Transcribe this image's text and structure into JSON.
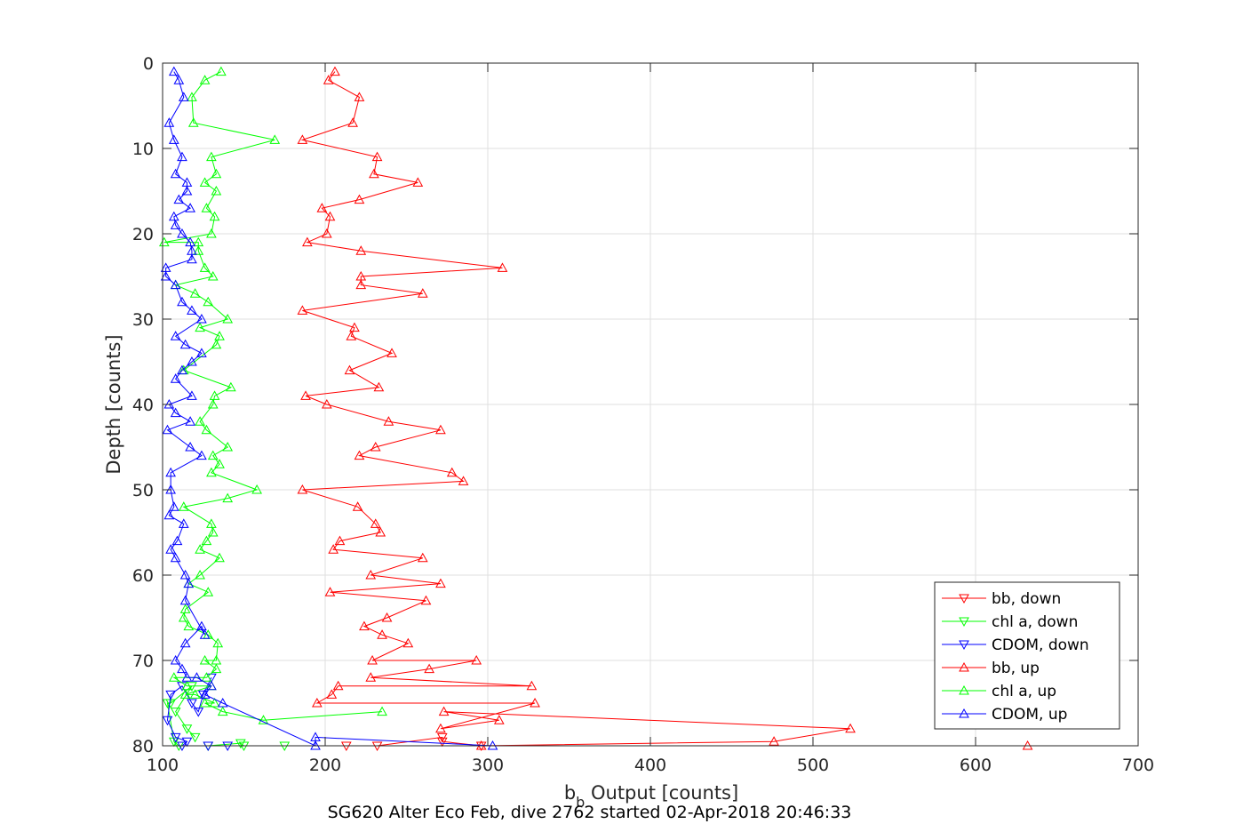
{
  "caption": "SG620 Alter Eco Feb, dive 2762 started 02-Apr-2018 20:46:33",
  "chart_data": {
    "type": "line",
    "xlabel_main": "b",
    "xlabel_sub": "b",
    "xlabel_rest": " Output [counts]",
    "ylabel": "Depth [counts]",
    "xlim": [
      100,
      700
    ],
    "ylim": [
      0,
      80
    ],
    "y_reversed": true,
    "grid": true,
    "legend_position": "lower-right",
    "xticks": [
      "100",
      "200",
      "300",
      "400",
      "500",
      "600",
      "700"
    ],
    "yticks": [
      "0",
      "10",
      "20",
      "30",
      "40",
      "50",
      "60",
      "70",
      "80"
    ],
    "series": [
      {
        "name": "bb, down",
        "color": "#ff0000",
        "marker": "triangle-down",
        "x": [
          213,
          232,
          272,
          272,
          296
        ],
        "y": [
          80,
          80,
          79,
          79.5,
          80
        ]
      },
      {
        "name": "chl a, down",
        "color": "#00ff00",
        "marker": "triangle-down",
        "x": [
          175,
          150,
          148,
          128,
          110,
          107,
          103,
          105,
          118,
          108,
          115,
          120
        ],
        "y": [
          80,
          80,
          79.7,
          80,
          80,
          79.5,
          75,
          75,
          73,
          76,
          78,
          79
        ]
      },
      {
        "name": "CDOM, down",
        "color": "#0000ff",
        "marker": "triangle-down",
        "x": [
          140,
          128,
          112,
          115,
          108,
          103,
          105,
          112,
          118,
          122,
          125,
          130
        ],
        "y": [
          80,
          80,
          80,
          79.5,
          79,
          77,
          74,
          73,
          75,
          76,
          74,
          72
        ]
      },
      {
        "name": "bb, up",
        "color": "#ff0000",
        "marker": "triangle-up",
        "x": [
          632,
          296,
          476,
          523,
          273,
          307,
          271,
          329,
          195,
          204,
          208,
          327,
          228,
          264,
          293,
          229,
          251,
          235,
          224,
          238,
          262,
          203,
          271,
          228,
          260,
          205,
          209,
          234,
          231,
          220,
          186,
          285,
          278,
          221,
          231,
          271,
          239,
          201,
          188,
          233,
          215,
          241,
          216,
          218,
          186,
          260,
          222,
          222,
          309,
          222,
          189,
          201,
          203,
          198,
          221,
          257,
          230,
          232,
          186,
          217,
          221,
          202,
          206
        ],
        "y": [
          80,
          80,
          79.5,
          78,
          76,
          77,
          78,
          75,
          75,
          74,
          73,
          73,
          72,
          71,
          70,
          70,
          68,
          67,
          66,
          65,
          63,
          62,
          61,
          60,
          58,
          57,
          56,
          55,
          54,
          52,
          50,
          49,
          48,
          46,
          45,
          43,
          42,
          40,
          39,
          38,
          36,
          34,
          32,
          31,
          29,
          27,
          26,
          25,
          24,
          22,
          21,
          20,
          18,
          17,
          16,
          14,
          13,
          11,
          9,
          7,
          4,
          2,
          1
        ]
      },
      {
        "name": "chl a, up",
        "color": "#00ff00",
        "marker": "triangle-up",
        "x": [
          235,
          162,
          137,
          126,
          132,
          120,
          114,
          130,
          115,
          107,
          127,
          133,
          126,
          133,
          134,
          128,
          116,
          113,
          114,
          128,
          116,
          123,
          135,
          123,
          127,
          131,
          130,
          113,
          140,
          158,
          130,
          135,
          131,
          140,
          127,
          123,
          131,
          132,
          142,
          113,
          133,
          135,
          123,
          140,
          128,
          120,
          108,
          131,
          126,
          122,
          122,
          101,
          130,
          132,
          127,
          133,
          126,
          133,
          130,
          169,
          119,
          118,
          126,
          136
        ],
        "y": [
          76,
          77,
          76,
          75,
          75,
          74,
          74,
          73,
          73,
          72,
          72,
          71,
          70,
          70,
          68,
          67,
          66,
          65,
          64,
          62,
          61,
          60,
          58,
          57,
          56,
          55,
          54,
          52,
          51,
          50,
          48,
          47,
          46,
          45,
          43,
          42,
          40,
          39,
          38,
          36,
          33,
          32,
          31,
          30,
          28,
          27,
          26,
          25,
          24,
          22,
          21,
          21,
          20,
          18,
          17,
          15,
          14,
          13,
          11,
          9,
          7,
          4,
          2,
          1
        ]
      },
      {
        "name": "CDOM, up",
        "color": "#0000ff",
        "marker": "triangle-up",
        "x": [
          303,
          194,
          194,
          137,
          126,
          130,
          121,
          115,
          112,
          108,
          114,
          124,
          126,
          114,
          116,
          114,
          108,
          105,
          109,
          113,
          104,
          107,
          105,
          105,
          124,
          117,
          103,
          117,
          108,
          104,
          118,
          108,
          112,
          118,
          124,
          114,
          108,
          124,
          118,
          112,
          108,
          102,
          102,
          118,
          118,
          117,
          112,
          108,
          107,
          117,
          110,
          115,
          115,
          108,
          112,
          107,
          104,
          113,
          110,
          107
        ],
        "y": [
          80,
          79,
          80,
          75,
          74,
          73,
          72,
          72,
          71,
          70,
          68,
          66,
          67,
          63,
          61,
          60,
          58,
          57,
          56,
          54,
          53,
          52,
          50,
          48,
          46,
          45,
          43,
          42,
          41,
          40,
          39,
          37,
          36,
          35,
          34,
          33,
          32,
          30,
          29,
          28,
          26,
          25,
          24,
          23,
          22,
          21,
          20,
          19,
          18,
          17,
          16,
          15,
          14,
          13,
          11,
          9,
          7,
          4,
          2,
          1
        ]
      }
    ]
  }
}
